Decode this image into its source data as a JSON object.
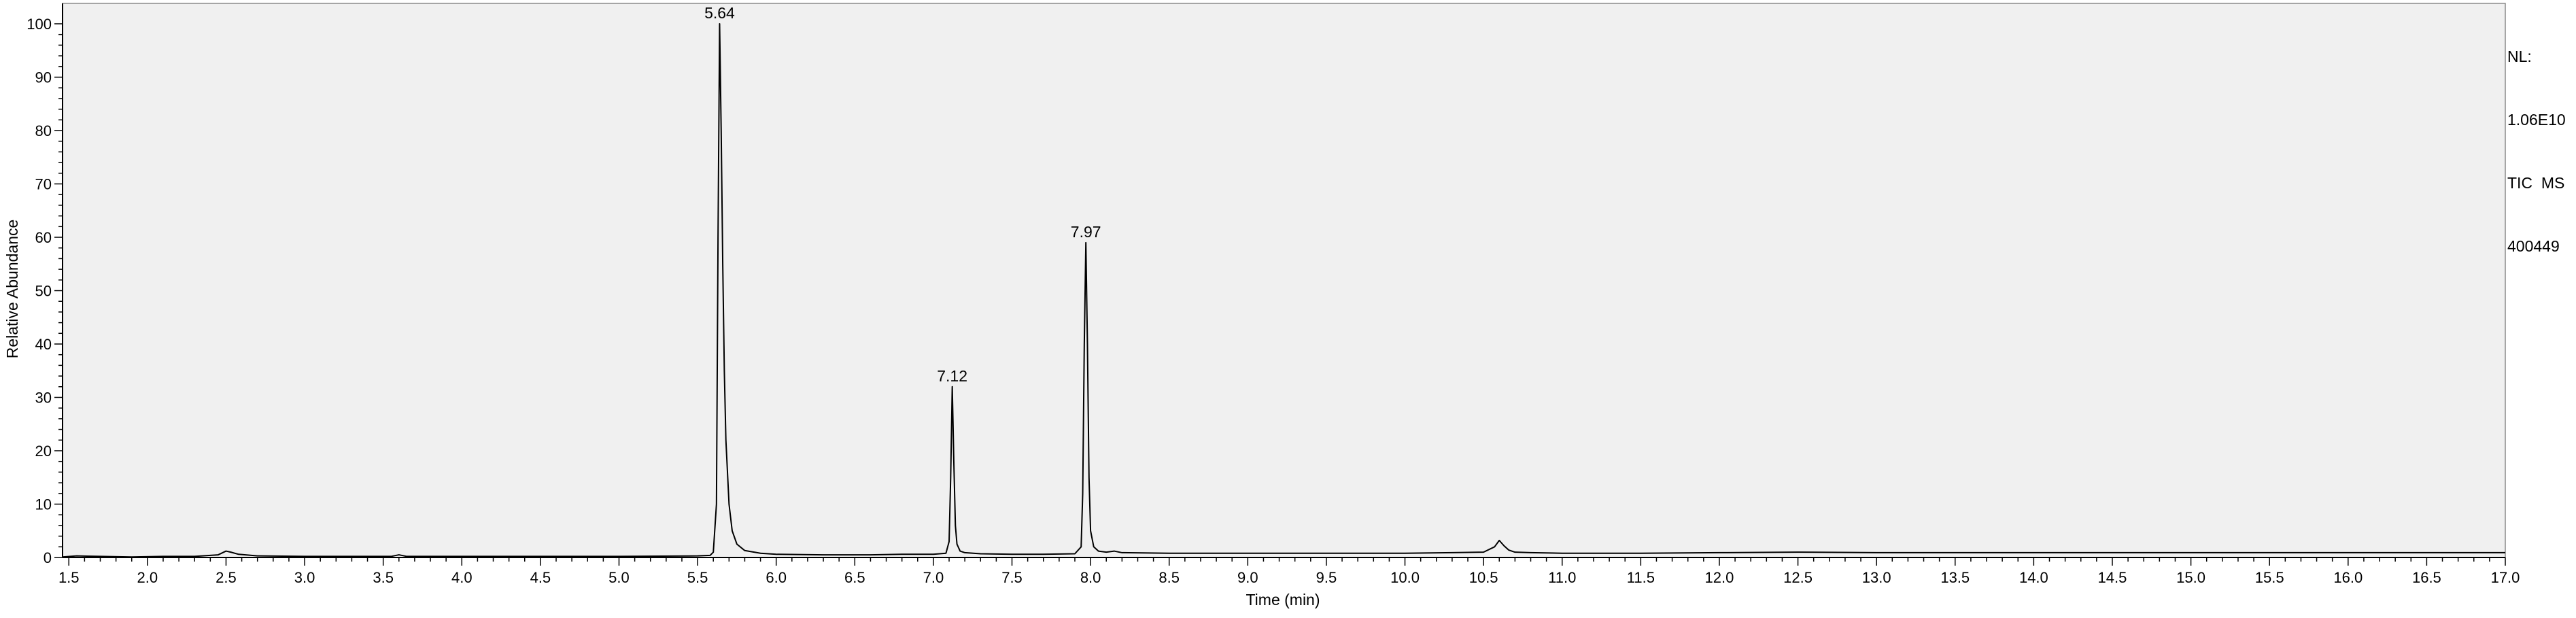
{
  "chart_data": {
    "type": "line",
    "xlabel": "Time (min)",
    "ylabel": "Relative Abundance",
    "xlim": [
      1.46,
      17.0
    ],
    "ylim": [
      0,
      100
    ],
    "x_ticks": [
      "1.5",
      "2.0",
      "2.5",
      "3.0",
      "3.5",
      "4.0",
      "4.5",
      "5.0",
      "5.5",
      "6.0",
      "6.5",
      "7.0",
      "7.5",
      "8.0",
      "8.5",
      "9.0",
      "9.5",
      "10.0",
      "10.5",
      "11.0",
      "11.5",
      "12.0",
      "12.5",
      "13.0",
      "13.5",
      "14.0",
      "14.5",
      "15.0",
      "15.5",
      "16.0",
      "16.5",
      "17.0"
    ],
    "y_ticks": [
      "0",
      "10",
      "20",
      "30",
      "40",
      "50",
      "60",
      "70",
      "80",
      "90",
      "100"
    ],
    "info": [
      "NL:",
      "1.06E10",
      "TIC  MS",
      "400449"
    ],
    "peak_labels": [
      {
        "text": "5.64",
        "x": 5.64,
        "y": 100
      },
      {
        "text": "7.12",
        "x": 7.12,
        "y": 32
      },
      {
        "text": "7.97",
        "x": 7.97,
        "y": 59
      }
    ],
    "series": [
      {
        "x": [
          1.46,
          1.55,
          1.7,
          1.9,
          2.1,
          2.3,
          2.45,
          2.5,
          2.53,
          2.58,
          2.7,
          3.0,
          3.3,
          3.55,
          3.6,
          3.65,
          4.0,
          4.5,
          5.0,
          5.5,
          5.58,
          5.6,
          5.62,
          5.63,
          5.64,
          5.65,
          5.66,
          5.67,
          5.68,
          5.7,
          5.72,
          5.75,
          5.8,
          5.9,
          6.0,
          6.3,
          6.6,
          6.8,
          7.0,
          7.08,
          7.1,
          7.11,
          7.12,
          7.13,
          7.14,
          7.15,
          7.17,
          7.2,
          7.3,
          7.5,
          7.7,
          7.9,
          7.94,
          7.95,
          7.96,
          7.97,
          7.98,
          7.99,
          8.0,
          8.02,
          8.05,
          8.1,
          8.15,
          8.2,
          8.5,
          9.0,
          9.5,
          10.0,
          10.3,
          10.5,
          10.57,
          10.6,
          10.63,
          10.66,
          10.7,
          10.8,
          11.0,
          11.5,
          12.0,
          12.5,
          13.0,
          14.0,
          15.0,
          16.0,
          17.0
        ],
        "y": [
          0.1,
          0.3,
          0.2,
          0.1,
          0.2,
          0.2,
          0.5,
          1.2,
          1.0,
          0.6,
          0.3,
          0.2,
          0.2,
          0.2,
          0.5,
          0.2,
          0.2,
          0.2,
          0.2,
          0.3,
          0.4,
          1.0,
          10,
          60,
          100,
          80,
          55,
          35,
          22,
          10,
          5,
          2.5,
          1.3,
          0.8,
          0.6,
          0.5,
          0.5,
          0.6,
          0.6,
          0.8,
          3,
          15,
          32,
          18,
          6,
          2.5,
          1.2,
          0.9,
          0.7,
          0.6,
          0.6,
          0.7,
          2,
          12,
          40,
          59,
          40,
          15,
          5,
          2,
          1.2,
          1.0,
          1.2,
          0.9,
          0.8,
          0.8,
          0.8,
          0.8,
          0.9,
          1.0,
          2.0,
          3.2,
          2.2,
          1.4,
          1.0,
          0.9,
          0.8,
          0.8,
          0.9,
          1.0,
          0.9,
          0.9,
          0.9,
          0.9,
          0.9
        ]
      }
    ]
  }
}
